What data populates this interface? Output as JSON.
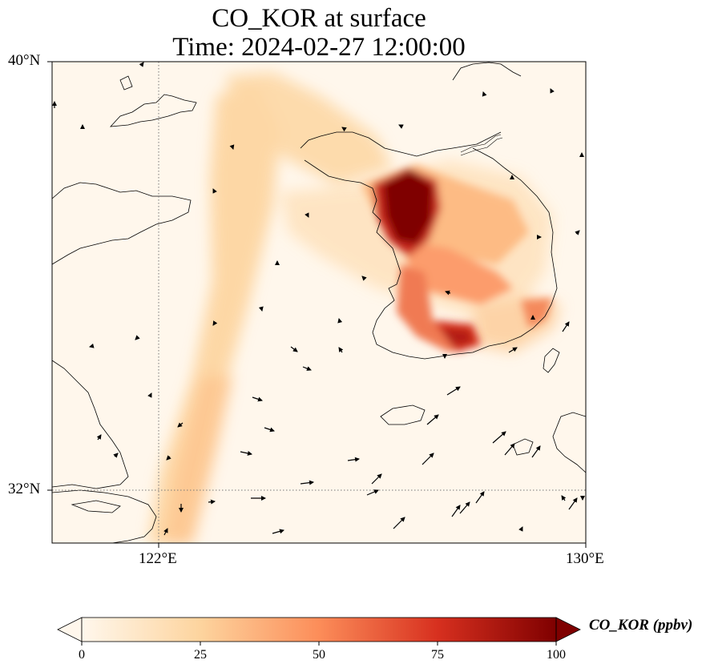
{
  "title": {
    "line1": "CO_KOR at surface",
    "line2": "Time: 2024-02-27 12:00:00"
  },
  "map": {
    "lat_labels": [
      "40°N",
      "32°N"
    ],
    "lon_labels": [
      "122°E",
      "130°E"
    ],
    "extent": {
      "lon": [
        120,
        130
      ],
      "lat": [
        31,
        40
      ]
    },
    "gridline_style": "dotted",
    "coastline_color": "#000000",
    "field_colormap": "OrRd"
  },
  "colorbar": {
    "label": "CO_KOR (ppbv)",
    "ticks": [
      "0",
      "25",
      "50",
      "75",
      "100"
    ],
    "range": [
      0,
      100
    ],
    "extend": "both",
    "colors": [
      "#fff7ec",
      "#fdd49e",
      "#fc8d59",
      "#d7301f",
      "#7f0000"
    ]
  }
}
